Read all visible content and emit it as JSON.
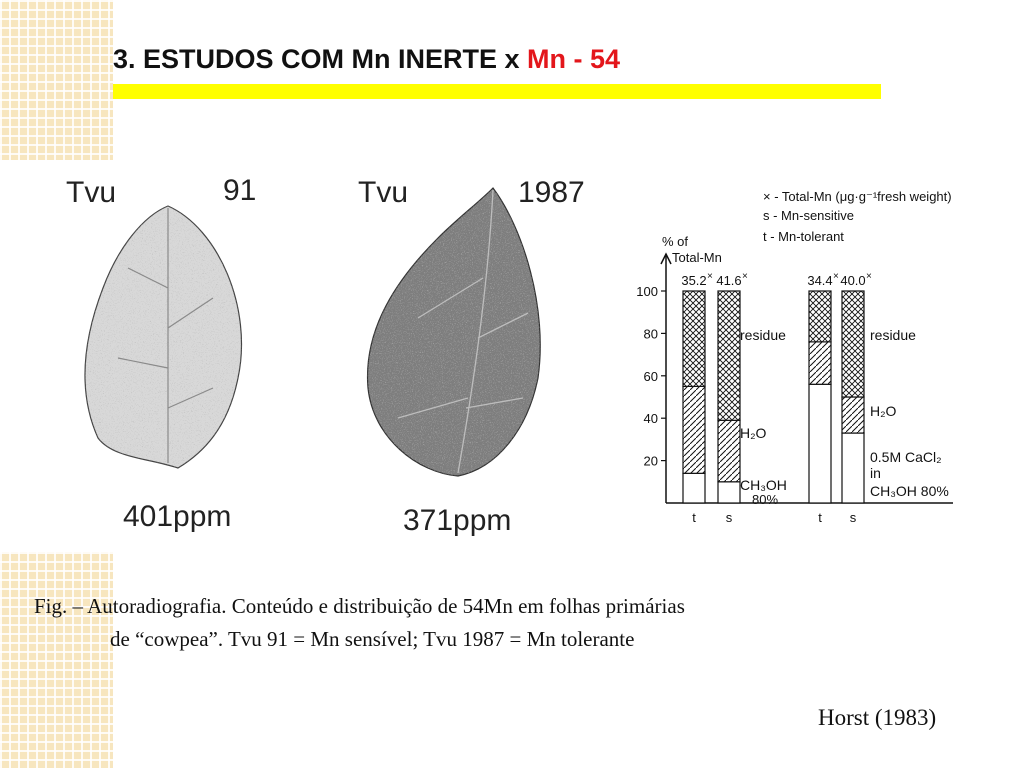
{
  "slide": {
    "title_main": "3. ESTUDOS COM Mn INERTE x ",
    "title_accent": "Mn - 54",
    "caption_line1": "Fig. – Autoradiografia. Conteúdo e distribuição de 54Mn em folhas primárias",
    "caption_line2": "de “cowpea”. Tvu 91 = Mn sensível; Tvu 1987 = Mn tolerante",
    "reference": "Horst (1983)"
  },
  "leaves": [
    {
      "name": "Tvu",
      "number": "91",
      "ppm": "401ppm"
    },
    {
      "name": "Tvu",
      "number": "1987",
      "ppm": "371ppm"
    }
  ],
  "chart_data": {
    "type": "bar",
    "legend": [
      "× - Total-Mn (μg·g⁻¹fresh weight)",
      "s - Mn-sensitive",
      "t - Mn-tolerant"
    ],
    "ylabel": "% of Total-Mn",
    "ylim": [
      0,
      100
    ],
    "yticks": [
      20,
      40,
      60,
      80,
      100
    ],
    "categories": [
      "t",
      "s",
      "t",
      "s"
    ],
    "groups": [
      "CH3OH 80% / H2O / residue",
      "0.5M CaCl2 in CH3OH 80% / H2O / residue"
    ],
    "totals": [
      "35.2",
      "41.6",
      "34.4",
      "40.0"
    ],
    "series": [
      {
        "name": "CH3OH 80% / 0.5M CaCl2 in CH3OH 80%",
        "values": [
          14,
          10,
          56,
          33
        ]
      },
      {
        "name": "H2O",
        "values": [
          41,
          29,
          20,
          17
        ]
      },
      {
        "name": "residue",
        "values": [
          45,
          61,
          24,
          50
        ]
      }
    ],
    "labels": {
      "residue_left": "residue",
      "h2o_left": "H₂O",
      "ch3oh_left": "CH₃OH",
      "ch3oh_left_pct": "80%",
      "residue_right": "residue",
      "h2o_right": "H₂O",
      "cacl2_right": "0.5M CaCl₂",
      "in_right": "in",
      "ch3oh_right": "CH₃OH 80%"
    }
  }
}
